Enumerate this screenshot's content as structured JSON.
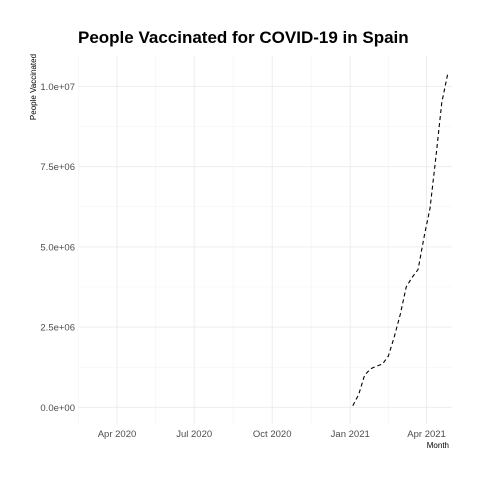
{
  "chart_data": {
    "type": "line",
    "title": "People Vaccinated for COVID-19 in Spain",
    "xlabel": "Month",
    "ylabel": "People Vaccinated",
    "x_ticks": [
      "Apr 2020",
      "Jul 2020",
      "Oct 2020",
      "Jan 2021",
      "Apr 2021"
    ],
    "x_tick_dates": [
      "2020-04-01",
      "2020-07-01",
      "2020-10-01",
      "2021-01-01",
      "2021-04-01"
    ],
    "y_ticks": [
      "0.0e+00",
      "2.5e+06",
      "5.0e+06",
      "7.5e+06",
      "1.0e+07"
    ],
    "y_tick_values": [
      0,
      2500000,
      5000000,
      7500000,
      10000000
    ],
    "xlim": [
      "2020-02-15",
      "2021-05-01"
    ],
    "ylim": [
      -520000,
      10950000
    ],
    "grid": true,
    "line_style": "dashed",
    "series": [
      {
        "color": "#000000",
        "x": [
          "2021-01-04",
          "2021-01-11",
          "2021-01-18",
          "2021-01-25",
          "2021-02-01",
          "2021-02-08",
          "2021-02-15",
          "2021-02-22",
          "2021-03-01",
          "2021-03-08",
          "2021-03-15",
          "2021-03-22",
          "2021-03-29",
          "2021-04-05",
          "2021-04-12",
          "2021-04-19",
          "2021-04-26"
        ],
        "y": [
          50000,
          400000,
          1000000,
          1200000,
          1280000,
          1350000,
          1600000,
          2200000,
          2900000,
          3750000,
          4050000,
          4300000,
          5300000,
          6200000,
          7800000,
          9500000,
          10400000
        ]
      }
    ]
  }
}
